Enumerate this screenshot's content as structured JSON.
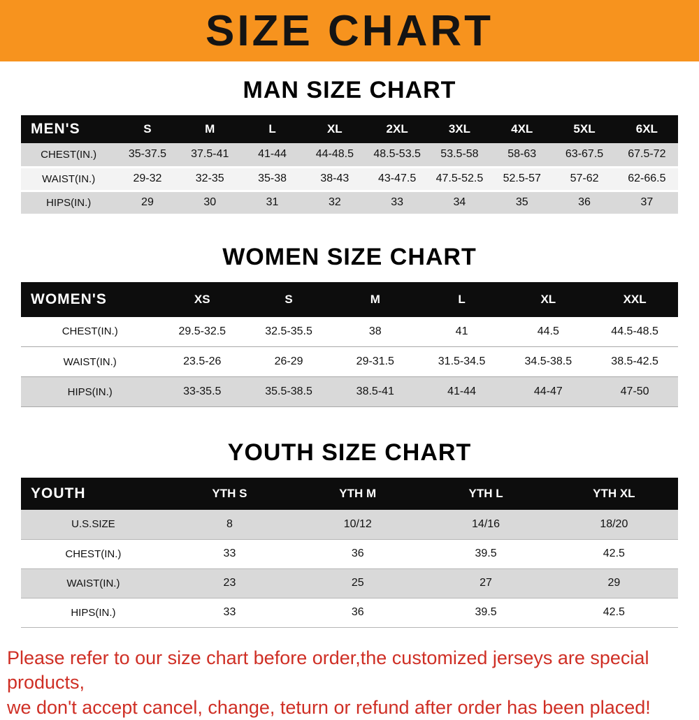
{
  "banner": {
    "title": "SIZE CHART",
    "bg_color": "#f7931e",
    "text_color": "#141414"
  },
  "colors": {
    "header_row_bg": "#0d0d0d",
    "stripe_gray": "#d9d9d9",
    "note_red": "#cf2f25"
  },
  "sections": [
    {
      "heading": "MAN SIZE CHART",
      "table": {
        "header_label": "MEN'S",
        "columns": [
          "S",
          "M",
          "L",
          "XL",
          "2XL",
          "3XL",
          "4XL",
          "5XL",
          "6XL"
        ],
        "rows": [
          {
            "label": "CHEST(IN.)",
            "values": [
              "35-37.5",
              "37.5-41",
              "41-44",
              "44-48.5",
              "48.5-53.5",
              "53.5-58",
              "58-63",
              "63-67.5",
              "67.5-72"
            ]
          },
          {
            "label": "WAIST(IN.)",
            "values": [
              "29-32",
              "32-35",
              "35-38",
              "38-43",
              "43-47.5",
              "47.5-52.5",
              "52.5-57",
              "57-62",
              "62-66.5"
            ]
          },
          {
            "label": "HIPS(IN.)",
            "values": [
              "29",
              "30",
              "31",
              "32",
              "33",
              "34",
              "35",
              "36",
              "37"
            ]
          }
        ]
      }
    },
    {
      "heading": "WOMEN SIZE CHART",
      "table": {
        "header_label": "WOMEN'S",
        "columns": [
          "XS",
          "S",
          "M",
          "L",
          "XL",
          "XXL"
        ],
        "rows": [
          {
            "label": "CHEST(IN.)",
            "values": [
              "29.5-32.5",
              "32.5-35.5",
              "38",
              "41",
              "44.5",
              "44.5-48.5"
            ]
          },
          {
            "label": "WAIST(IN.)",
            "values": [
              "23.5-26",
              "26-29",
              "29-31.5",
              "31.5-34.5",
              "34.5-38.5",
              "38.5-42.5"
            ]
          },
          {
            "label": "HIPS(IN.)",
            "values": [
              "33-35.5",
              "35.5-38.5",
              "38.5-41",
              "41-44",
              "44-47",
              "47-50"
            ]
          }
        ]
      }
    },
    {
      "heading": "YOUTH SIZE CHART",
      "table": {
        "header_label": "YOUTH",
        "columns": [
          "YTH S",
          "YTH M",
          "YTH L",
          "YTH XL"
        ],
        "rows": [
          {
            "label": "U.S.SIZE",
            "values": [
              "8",
              "10/12",
              "14/16",
              "18/20"
            ]
          },
          {
            "label": "CHEST(IN.)",
            "values": [
              "33",
              "36",
              "39.5",
              "42.5"
            ]
          },
          {
            "label": "WAIST(IN.)",
            "values": [
              "23",
              "25",
              "27",
              "29"
            ]
          },
          {
            "label": "HIPS(IN.)",
            "values": [
              "33",
              "36",
              "39.5",
              "42.5"
            ]
          }
        ]
      }
    }
  ],
  "footer": {
    "line1": "Please refer to our size chart before order,the customized jerseys are special products,",
    "line2": "we don't accept cancel, change, teturn or refund after order has been placed!"
  }
}
